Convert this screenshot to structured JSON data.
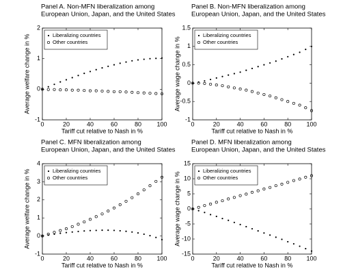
{
  "chart_data": [
    {
      "type": "scatter",
      "title": [
        "Panel A. Non-MFN liberalization among",
        "European Union, Japan, and the United States"
      ],
      "x_label": "Tariff cut relative to Nash in %",
      "y_label": "Average welfare change in %",
      "x": [
        0,
        5,
        10,
        15,
        20,
        25,
        30,
        35,
        40,
        45,
        50,
        55,
        60,
        65,
        70,
        75,
        80,
        85,
        90,
        95,
        100
      ],
      "xlim": [
        0,
        100
      ],
      "xticks": [
        0,
        20,
        40,
        60,
        80,
        100
      ],
      "ylim": [
        -1,
        2
      ],
      "yticks": [
        -1,
        0,
        1,
        2
      ],
      "legend": "upper left",
      "series": [
        {
          "name": "Liberalizing countries",
          "marker": "dot",
          "color": "#000000",
          "values": [
            0,
            0.08,
            0.16,
            0.24,
            0.31,
            0.38,
            0.45,
            0.52,
            0.58,
            0.64,
            0.7,
            0.75,
            0.8,
            0.85,
            0.89,
            0.93,
            0.96,
            0.98,
            1.0,
            1.01,
            1.02
          ]
        },
        {
          "name": "Other countries",
          "marker": "circle",
          "color": "#000000",
          "values": [
            0,
            -0.01,
            -0.01,
            -0.02,
            -0.02,
            -0.03,
            -0.03,
            -0.04,
            -0.05,
            -0.05,
            -0.06,
            -0.07,
            -0.08,
            -0.08,
            -0.09,
            -0.1,
            -0.11,
            -0.12,
            -0.13,
            -0.14,
            -0.15
          ]
        }
      ]
    },
    {
      "type": "scatter",
      "title": [
        "Panel B. Non-MFN liberalization among",
        "European Union, Japan, and the United States"
      ],
      "x_label": "Tariff cut relative to Nash in %",
      "y_label": "Average wage change in %",
      "x": [
        0,
        5,
        10,
        15,
        20,
        25,
        30,
        35,
        40,
        45,
        50,
        55,
        60,
        65,
        70,
        75,
        80,
        85,
        90,
        95,
        100
      ],
      "xlim": [
        0,
        100
      ],
      "xticks": [
        0,
        20,
        40,
        60,
        80,
        100
      ],
      "ylim": [
        -1,
        1.5
      ],
      "yticks": [
        -1,
        -0.5,
        0,
        0.5,
        1,
        1.5
      ],
      "legend": "upper left",
      "series": [
        {
          "name": "Liberalizing countries",
          "marker": "dot",
          "color": "#000000",
          "values": [
            0,
            0.03,
            0.06,
            0.1,
            0.14,
            0.18,
            0.22,
            0.26,
            0.3,
            0.35,
            0.4,
            0.45,
            0.5,
            0.55,
            0.6,
            0.66,
            0.72,
            0.78,
            0.84,
            0.92,
            1.0
          ]
        },
        {
          "name": "Other countries",
          "marker": "circle",
          "color": "#000000",
          "values": [
            0,
            0,
            -0.01,
            -0.03,
            -0.05,
            -0.07,
            -0.1,
            -0.13,
            -0.16,
            -0.19,
            -0.23,
            -0.27,
            -0.31,
            -0.35,
            -0.4,
            -0.45,
            -0.5,
            -0.55,
            -0.6,
            -0.67,
            -0.75
          ]
        }
      ]
    },
    {
      "type": "scatter",
      "title": [
        "Panel C. MFN liberalization among",
        "European Union, Japan, and the United States"
      ],
      "x_label": "Tariff cut relative to Nash in %",
      "y_label": "Average welfare change in %",
      "x": [
        0,
        5,
        10,
        15,
        20,
        25,
        30,
        35,
        40,
        45,
        50,
        55,
        60,
        65,
        70,
        75,
        80,
        85,
        90,
        95,
        100
      ],
      "xlim": [
        0,
        100
      ],
      "xticks": [
        0,
        20,
        40,
        60,
        80,
        100
      ],
      "ylim": [
        -1,
        4
      ],
      "yticks": [
        -1,
        0,
        1,
        2,
        3,
        4
      ],
      "legend": "upper left",
      "series": [
        {
          "name": "Liberalizing countries",
          "marker": "dot",
          "color": "#000000",
          "values": [
            0,
            0.05,
            0.1,
            0.15,
            0.19,
            0.22,
            0.25,
            0.28,
            0.3,
            0.31,
            0.32,
            0.32,
            0.31,
            0.29,
            0.26,
            0.22,
            0.17,
            0.1,
            0.02,
            -0.08,
            -0.2
          ]
        },
        {
          "name": "Other countries",
          "marker": "circle",
          "color": "#000000",
          "values": [
            0,
            0.1,
            0.2,
            0.3,
            0.4,
            0.52,
            0.65,
            0.78,
            0.92,
            1.07,
            1.22,
            1.38,
            1.55,
            1.73,
            1.92,
            2.12,
            2.33,
            2.55,
            2.78,
            3.02,
            3.25
          ]
        }
      ]
    },
    {
      "type": "scatter",
      "title": [
        "Panel D. MFN liberalization among",
        "European Union, Japan, and the United States"
      ],
      "x_label": "Tariff cut relative to Nash in %",
      "y_label": "Average wage change in %",
      "x": [
        0,
        5,
        10,
        15,
        20,
        25,
        30,
        35,
        40,
        45,
        50,
        55,
        60,
        65,
        70,
        75,
        80,
        85,
        90,
        95,
        100
      ],
      "xlim": [
        0,
        100
      ],
      "xticks": [
        0,
        20,
        40,
        60,
        80,
        100
      ],
      "ylim": [
        -15,
        15
      ],
      "yticks": [
        -15,
        -10,
        -5,
        0,
        5,
        10,
        15
      ],
      "legend": "upper left",
      "series": [
        {
          "name": "Liberalizing countries",
          "marker": "dot",
          "color": "#000000",
          "values": [
            0,
            -0.6,
            -1.2,
            -1.9,
            -2.5,
            -3.2,
            -3.8,
            -4.5,
            -5.2,
            -5.9,
            -6.6,
            -7.3,
            -8,
            -8.7,
            -9.4,
            -10.1,
            -10.9,
            -11.6,
            -12.4,
            -13.2,
            -14
          ]
        },
        {
          "name": "Other countries",
          "marker": "circle",
          "color": "#000000",
          "values": [
            0,
            0.5,
            1.1,
            1.6,
            2.2,
            2.7,
            3.3,
            3.8,
            4.4,
            4.9,
            5.5,
            6,
            6.6,
            7.1,
            7.7,
            8.2,
            8.8,
            9.4,
            9.9,
            10.5,
            11
          ]
        }
      ]
    }
  ]
}
